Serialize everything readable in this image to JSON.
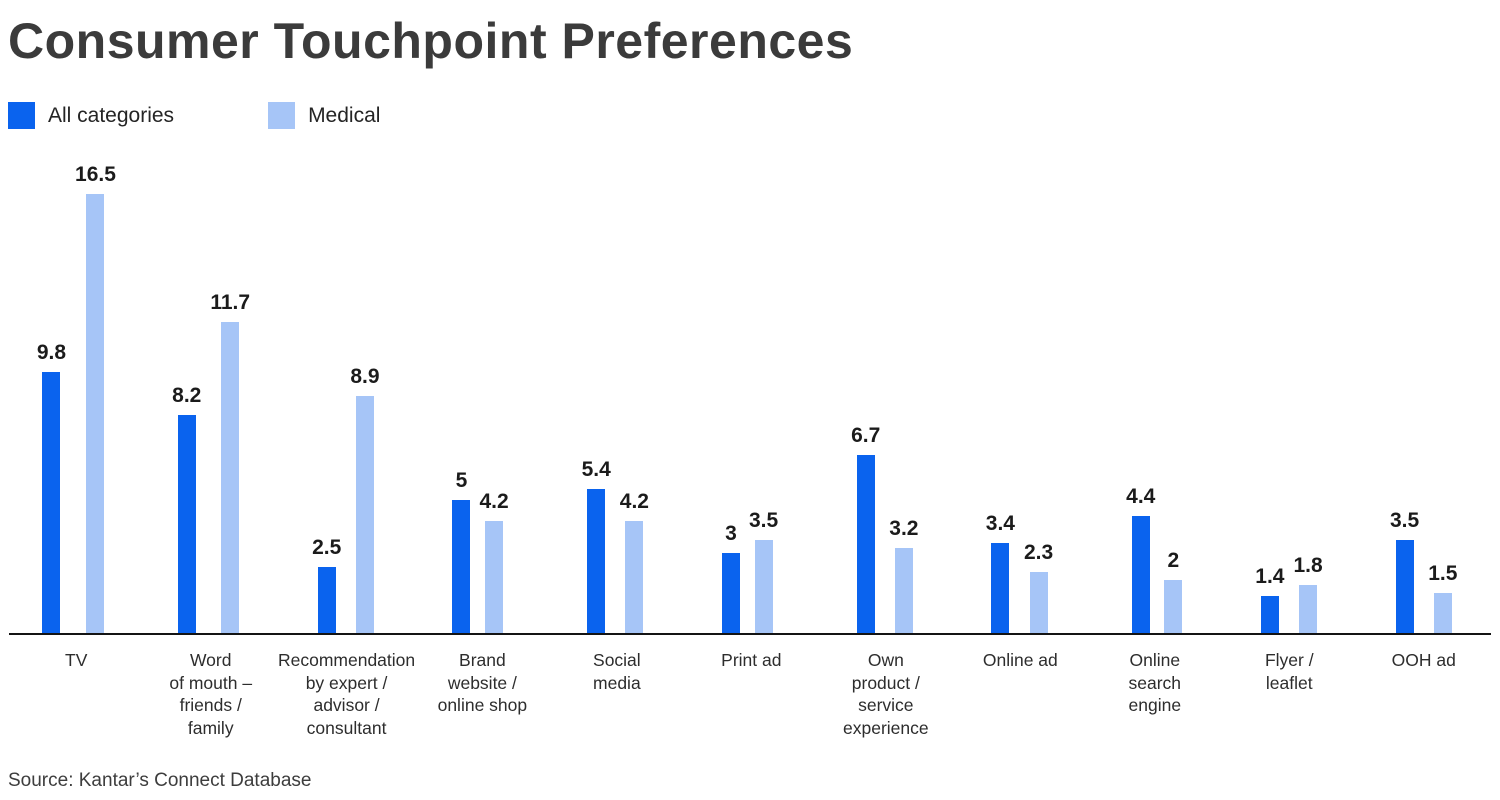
{
  "page": {
    "title": "Consumer Touchpoint Preferences",
    "source": "Source: Kantar’s Connect Database"
  },
  "legend": {
    "items": [
      {
        "label": "All categories",
        "color": "#0a63ee"
      },
      {
        "label": "Medical",
        "color": "#a6c5f7"
      }
    ]
  },
  "chart_data": {
    "type": "bar",
    "title": "Consumer Touchpoint Preferences",
    "categories": [
      "TV",
      "Word of mouth – friends / family",
      "Recommendation by expert / advisor / consultant",
      "Brand website / online shop",
      "Social media",
      "Print ad",
      "Own product / service experience",
      "Online ad",
      "Online search engine",
      "Flyer / leaflet",
      "OOH ad"
    ],
    "category_label_lines": [
      [
        "TV"
      ],
      [
        "Word",
        "of mouth –",
        "friends /",
        "family"
      ],
      [
        "Recommendation",
        "by expert /",
        "advisor /",
        "consultant"
      ],
      [
        "Brand",
        "website /",
        "online shop"
      ],
      [
        "Social",
        "media"
      ],
      [
        "Print ad"
      ],
      [
        "Own",
        "product /",
        "service",
        "experience"
      ],
      [
        "Online ad"
      ],
      [
        "Online",
        "search",
        "engine"
      ],
      [
        "Flyer /",
        "leaflet"
      ],
      [
        "OOH ad"
      ]
    ],
    "series": [
      {
        "name": "All categories",
        "color": "#0a63ee",
        "values": [
          9.8,
          8.2,
          2.5,
          5,
          5.4,
          3,
          6.7,
          3.4,
          4.4,
          1.4,
          3.5
        ]
      },
      {
        "name": "Medical",
        "color": "#a6c5f7",
        "values": [
          16.5,
          11.7,
          8.9,
          4.2,
          4.2,
          3.5,
          3.2,
          2.3,
          2,
          1.8,
          1.5
        ]
      }
    ],
    "ylim": [
      0,
      18.2
    ],
    "grid": false,
    "legend_position": "top-left",
    "value_labels_shown": true,
    "axis_color": "#141414",
    "source": "Source: Kantar’s Connect Database"
  }
}
